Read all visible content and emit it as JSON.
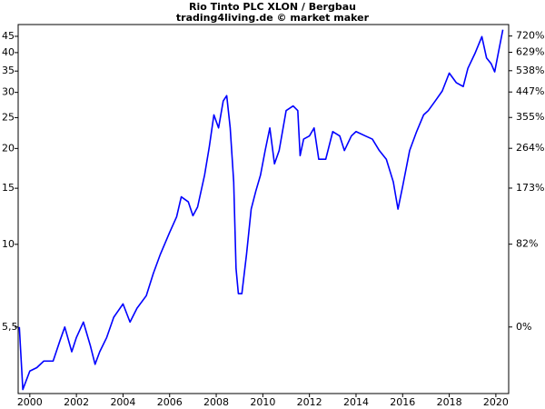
{
  "chart_data": {
    "type": "line",
    "title": "Rio Tinto PLC XLON / Bergbau",
    "subtitle": "trading4living.de © market maker",
    "x": [
      1999.55,
      1999.7,
      2000.0,
      2000.3,
      2000.6,
      2001.0,
      2001.3,
      2001.5,
      2001.8,
      2002.0,
      2002.3,
      2002.6,
      2002.8,
      2003.0,
      2003.3,
      2003.6,
      2004.0,
      2004.3,
      2004.6,
      2005.0,
      2005.3,
      2005.6,
      2006.0,
      2006.3,
      2006.5,
      2006.8,
      2007.0,
      2007.2,
      2007.5,
      2007.7,
      2007.9,
      2008.1,
      2008.3,
      2008.45,
      2008.6,
      2008.75,
      2008.85,
      2008.95,
      2009.1,
      2009.3,
      2009.5,
      2009.7,
      2009.9,
      2010.1,
      2010.3,
      2010.5,
      2010.7,
      2011.0,
      2011.3,
      2011.5,
      2011.6,
      2011.75,
      2012.0,
      2012.2,
      2012.4,
      2012.7,
      2013.0,
      2013.3,
      2013.5,
      2013.8,
      2014.0,
      2014.4,
      2014.7,
      2015.0,
      2015.3,
      2015.6,
      2015.8,
      2016.0,
      2016.3,
      2016.6,
      2016.9,
      2017.1,
      2017.4,
      2017.7,
      2018.0,
      2018.3,
      2018.6,
      2018.8,
      2019.1,
      2019.4,
      2019.6,
      2019.8,
      2019.95,
      2020.1,
      2020.3
    ],
    "values": [
      5.5,
      3.5,
      4.0,
      4.1,
      4.3,
      4.3,
      5.0,
      5.5,
      4.6,
      5.1,
      5.7,
      4.8,
      4.2,
      4.6,
      5.1,
      5.9,
      6.5,
      5.7,
      6.3,
      6.9,
      8.1,
      9.3,
      10.9,
      12.2,
      14.1,
      13.6,
      12.3,
      13.1,
      16.5,
      20.2,
      25.5,
      23.2,
      28.2,
      29.3,
      23.2,
      15.7,
      8.4,
      7.0,
      7.0,
      9.3,
      12.9,
      14.7,
      16.5,
      19.7,
      23.2,
      17.9,
      19.7,
      26.3,
      27.2,
      26.3,
      19.0,
      21.4,
      21.9,
      23.2,
      18.5,
      18.5,
      22.6,
      21.9,
      19.7,
      21.9,
      22.6,
      21.9,
      21.4,
      19.7,
      18.5,
      15.7,
      12.9,
      15.2,
      19.7,
      22.6,
      25.5,
      26.3,
      28.2,
      30.3,
      34.5,
      32.2,
      31.3,
      35.7,
      39.7,
      44.9,
      38.5,
      36.9,
      34.8,
      39.7,
      47.2
    ],
    "color": "#0000ff",
    "xlim": [
      1999.5,
      2020.55
    ],
    "xticks": [
      2000,
      2002,
      2004,
      2006,
      2008,
      2010,
      2012,
      2014,
      2016,
      2018,
      2020
    ],
    "ylim": [
      3.4,
      49
    ],
    "yscale": "log",
    "yticks": [
      {
        "value": 5.5,
        "label": "5,5"
      },
      10,
      15,
      20,
      25,
      30,
      35,
      40,
      45
    ],
    "y2lim": [
      -38.2,
      790.9
    ],
    "y2scale": "log-percent",
    "y2ticks": [
      {
        "value": 0,
        "label": "0%"
      },
      {
        "value": 82,
        "label": "82%"
      },
      {
        "value": 173,
        "label": "173%"
      },
      {
        "value": 264,
        "label": "264%"
      },
      {
        "value": 355,
        "label": "355%"
      },
      {
        "value": 447,
        "label": "447%"
      },
      {
        "value": 538,
        "label": "538%"
      },
      {
        "value": 629,
        "label": "629%"
      },
      {
        "value": 720,
        "label": "720%"
      }
    ]
  }
}
